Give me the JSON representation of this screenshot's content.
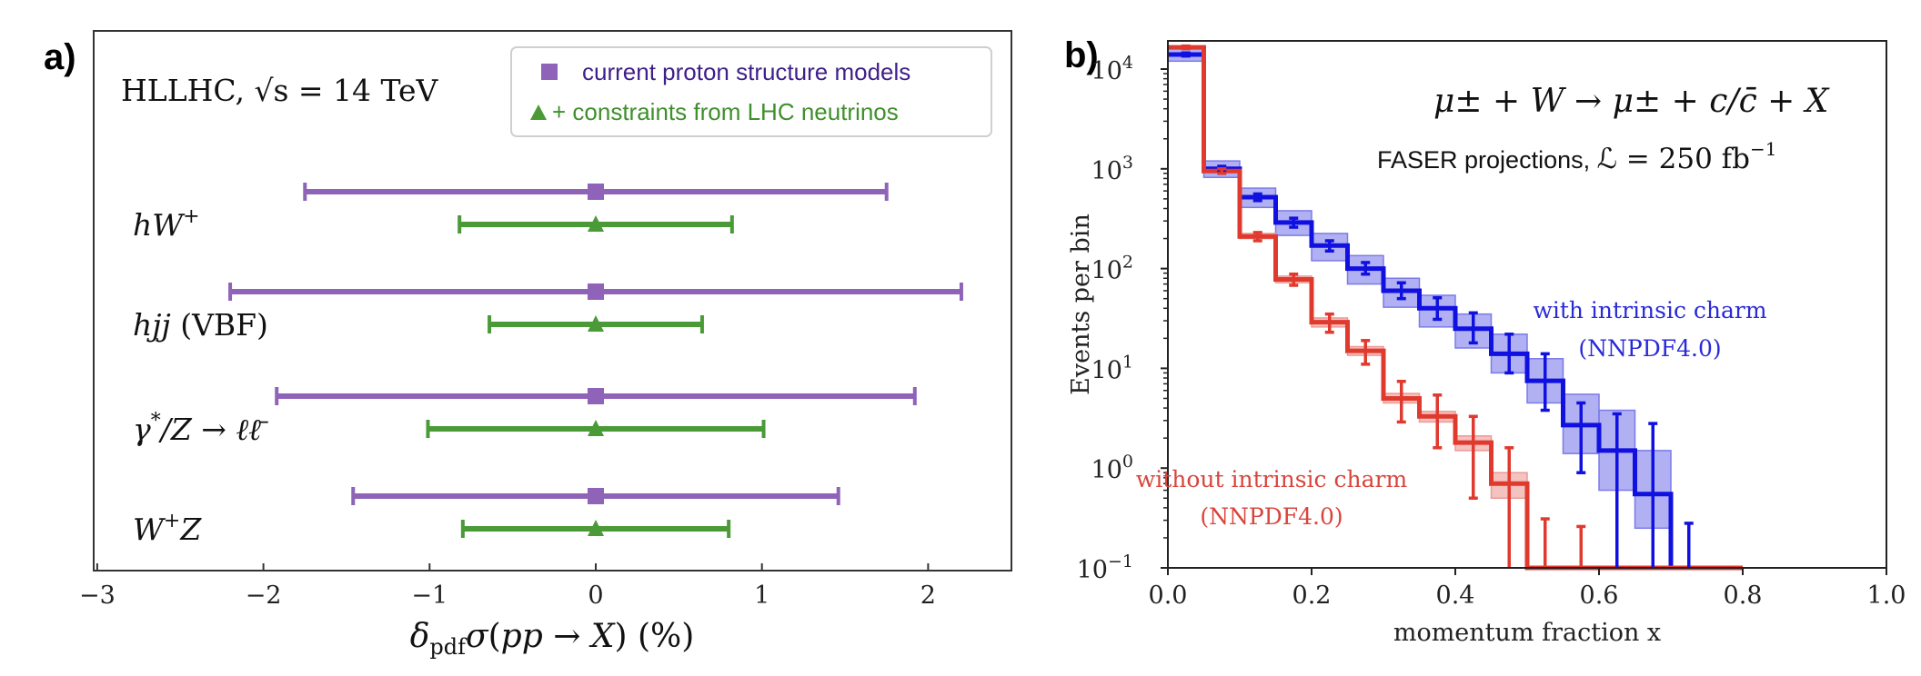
{
  "panels": {
    "a": {
      "label": "a)"
    },
    "b": {
      "label": "b)"
    }
  },
  "chart_data": [
    {
      "type": "errorbar",
      "id": "a",
      "title": "",
      "annotation": "HLLHC, √s = 14 TeV",
      "xlabel": "δ_pdf σ(pp → X) (%)",
      "ylabel": "",
      "xlim": [
        -3,
        2.5
      ],
      "xticks": [
        -3,
        -2,
        -1,
        0,
        1,
        2
      ],
      "xtick_labels": [
        "−3",
        "−2",
        "−1",
        "0",
        "1",
        "2"
      ],
      "grid": false,
      "legend": {
        "placement": "top-right",
        "entries": [
          {
            "name": "current proton structure models",
            "marker": "square",
            "color": "#8e63b8",
            "text_color": "#3f1f8a"
          },
          {
            "name": "+ constraints from LHC neutrinos",
            "marker": "triangle",
            "color": "#4a9a38",
            "text_color": "#3f8f2c"
          }
        ]
      },
      "categories": [
        "hW⁺",
        "hjj (VBF)",
        "γ*/Z → ℓℓ̄",
        "W⁺Z"
      ],
      "category_labels": [
        {
          "main": "hW",
          "sup": "+",
          "suffix": ""
        },
        {
          "main": "hjj",
          "sup": "",
          "suffix": " (VBF)"
        },
        {
          "main": "γ",
          "sup": "*",
          "suffix": "/Z → ℓℓ̄"
        },
        {
          "main": "W",
          "sup": "+",
          "suffix": "Z"
        }
      ],
      "series": [
        {
          "name": "current proton structure models",
          "color": "#8e63b8",
          "marker": "square",
          "central": [
            0,
            0,
            0,
            0
          ],
          "uncertainty": [
            1.75,
            2.2,
            1.92,
            1.46
          ]
        },
        {
          "name": "+ constraints from LHC neutrinos",
          "color": "#4a9a38",
          "marker": "triangle",
          "central": [
            0,
            0,
            0,
            0
          ],
          "uncertainty": [
            0.82,
            0.64,
            1.01,
            0.8
          ]
        }
      ]
    },
    {
      "type": "histogram",
      "id": "b",
      "title": "μ± + W → μ± + c/c̄ + X",
      "subtitle": "FASER projections, ℒ = 250 fb⁻¹",
      "subtitle_parts": {
        "text": "FASER projections, ",
        "math": "ℒ = 250 fb",
        "sup": "−1"
      },
      "xlabel": "momentum fraction x",
      "ylabel": "Events per bin",
      "yscale": "log",
      "xlim": [
        0.0,
        1.0
      ],
      "ylim": [
        0.1,
        20000
      ],
      "xticks": [
        0.0,
        0.2,
        0.4,
        0.6,
        0.8,
        1.0
      ],
      "xtick_labels": [
        "0.0",
        "0.2",
        "0.4",
        "0.6",
        "0.8",
        "1.0"
      ],
      "yticks": [
        0.1,
        1,
        10,
        100,
        1000,
        10000
      ],
      "ytick_labels": [
        {
          "base": "10",
          "exp": "−1"
        },
        {
          "base": "10",
          "exp": "0"
        },
        {
          "base": "10",
          "exp": "1"
        },
        {
          "base": "10",
          "exp": "2"
        },
        {
          "base": "10",
          "exp": "3"
        },
        {
          "base": "10",
          "exp": "4"
        }
      ],
      "grid": false,
      "bin_edges": [
        0.0,
        0.05,
        0.1,
        0.15,
        0.2,
        0.25,
        0.3,
        0.35,
        0.4,
        0.45,
        0.5,
        0.55,
        0.6,
        0.65,
        0.7,
        0.75,
        0.8
      ],
      "series": [
        {
          "name": "with intrinsic charm (NNPDF4.0)",
          "label_lines": [
            "with intrinsic charm",
            "(NNPDF4.0)"
          ],
          "color": "#1010e0",
          "band_color": "#7b7bea",
          "values": [
            14000,
            1000,
            520,
            290,
            170,
            100,
            60,
            40,
            25,
            14,
            7.5,
            2.7,
            1.5,
            0.55,
            0.1,
            0.1
          ],
          "band_low": [
            12000,
            820,
            410,
            215,
            120,
            70,
            41,
            26,
            16,
            9,
            4.5,
            1.4,
            0.6,
            0.25,
            0.1,
            0.1
          ],
          "band_high": [
            16500,
            1200,
            640,
            380,
            225,
            135,
            80,
            54,
            35,
            22,
            12.5,
            5.5,
            3.8,
            1.5,
            0.1,
            0.1
          ],
          "stat_low": [
            13500,
            940,
            480,
            260,
            150,
            88,
            50,
            31,
            18,
            9,
            3.8,
            0.9,
            0.1,
            0.1,
            0.1,
            0.1
          ],
          "stat_high": [
            14500,
            1060,
            560,
            320,
            190,
            115,
            72,
            51,
            36,
            22,
            14,
            4.5,
            3.5,
            2.8,
            0.28,
            0.1
          ]
        },
        {
          "name": "without intrinsic charm (NNPDF4.0)",
          "label_lines": [
            "without intrinsic charm",
            "(NNPDF4.0)"
          ],
          "color": "#e03a2f",
          "band_color": "#ec9a94",
          "values": [
            16500,
            950,
            210,
            78,
            29,
            15,
            5,
            3.3,
            1.8,
            0.7,
            0.1,
            0.1,
            0.1,
            0.1,
            0.1,
            0.1
          ],
          "band_low": [
            16000,
            920,
            200,
            72,
            26,
            13.5,
            4.5,
            2.9,
            1.5,
            0.5,
            0.1,
            0.1,
            0.1,
            0.1,
            0.1,
            0.1
          ],
          "band_high": [
            17000,
            980,
            225,
            84,
            32,
            16.5,
            5.6,
            3.7,
            2.1,
            0.9,
            0.1,
            0.1,
            0.1,
            0.1,
            0.1,
            0.1
          ],
          "stat_low": [
            16000,
            900,
            190,
            68,
            23,
            11,
            2.9,
            1.6,
            0.5,
            0.1,
            0.1,
            0.1,
            0.1,
            0.1,
            0.1,
            0.1
          ],
          "stat_high": [
            17000,
            1000,
            230,
            88,
            35,
            19,
            7.4,
            5.4,
            3.3,
            1.6,
            0.31,
            0.26,
            0.1,
            0.1,
            0.1,
            0.1
          ]
        }
      ]
    }
  ]
}
